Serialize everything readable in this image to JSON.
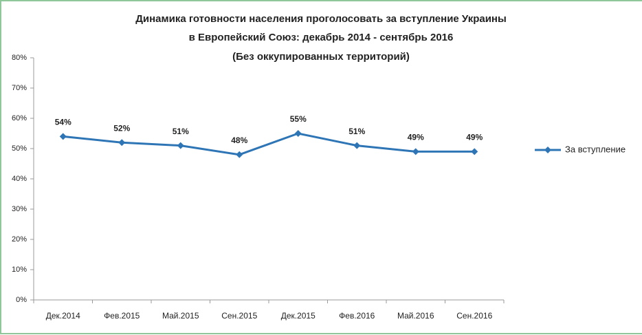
{
  "chart_data": {
    "type": "line",
    "title": [
      "Динамика готовности населения проголосовать за вступление Украины",
      "в Европейский Союз: декабрь 2014 - сентябрь 2016",
      "(Без оккупированных территорий)"
    ],
    "categories": [
      "Дек.2014",
      "Фев.2015",
      "Май.2015",
      "Сен.2015",
      "Дек.2015",
      "Фев.2016",
      "Май.2016",
      "Сен.2016"
    ],
    "series": [
      {
        "name": "За вступление",
        "color": "#2e75b6",
        "values": [
          54,
          52,
          51,
          48,
          55,
          51,
          49,
          49
        ],
        "value_labels": [
          "54%",
          "52%",
          "51%",
          "48%",
          "55%",
          "51%",
          "49%",
          "49%"
        ]
      }
    ],
    "ylim": [
      0,
      80
    ],
    "yticks": [
      {
        "value": 0,
        "label": "0%"
      },
      {
        "value": 10,
        "label": "10%"
      },
      {
        "value": 20,
        "label": "20%"
      },
      {
        "value": 30,
        "label": "30%"
      },
      {
        "value": 40,
        "label": "40%"
      },
      {
        "value": 50,
        "label": "50%"
      },
      {
        "value": 60,
        "label": "60%"
      },
      {
        "value": 70,
        "label": "70%"
      },
      {
        "value": 80,
        "label": "80%"
      }
    ],
    "grid": false,
    "legend": "right"
  }
}
